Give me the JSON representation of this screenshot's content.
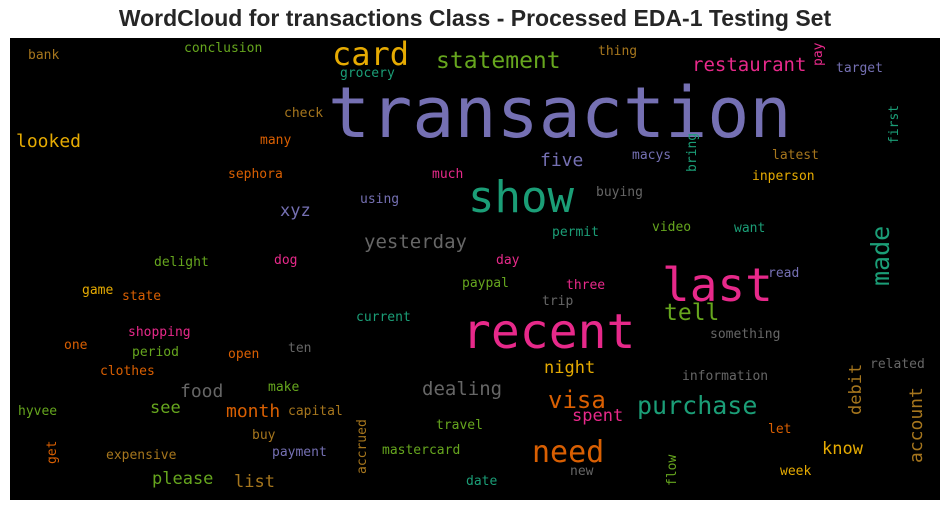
{
  "chart_data": {
    "type": "wordcloud",
    "title": "WordCloud for transactions Class - Processed EDA-1 Testing Set",
    "background": "#000000",
    "palette": [
      "#7570b3",
      "#1b9e77",
      "#e7298a",
      "#d95f02",
      "#e6ab02",
      "#66a61e",
      "#a6761d",
      "#666666"
    ],
    "words": [
      {
        "text": "transaction",
        "weight": 1.0,
        "color": "#7570b3"
      },
      {
        "text": "recent",
        "weight": 0.72,
        "color": "#e7298a"
      },
      {
        "text": "last",
        "weight": 0.68,
        "color": "#e7298a"
      },
      {
        "text": "show",
        "weight": 0.62,
        "color": "#1b9e77"
      },
      {
        "text": "card",
        "weight": 0.52,
        "color": "#e6ab02"
      },
      {
        "text": "need",
        "weight": 0.44,
        "color": "#d95f02"
      },
      {
        "text": "purchase",
        "weight": 0.38,
        "color": "#1b9e77"
      },
      {
        "text": "made",
        "weight": 0.38,
        "color": "#1b9e77",
        "vertical": true
      },
      {
        "text": "statement",
        "weight": 0.36,
        "color": "#66a61e"
      },
      {
        "text": "visa",
        "weight": 0.36,
        "color": "#d95f02"
      },
      {
        "text": "tell",
        "weight": 0.35,
        "color": "#66a61e"
      },
      {
        "text": "restaurant",
        "weight": 0.3,
        "color": "#e7298a"
      },
      {
        "text": "yesterday",
        "weight": 0.29,
        "color": "#666666"
      },
      {
        "text": "dealing",
        "weight": 0.29,
        "color": "#666666"
      },
      {
        "text": "five",
        "weight": 0.28,
        "color": "#7570b3"
      },
      {
        "text": "looked",
        "weight": 0.27,
        "color": "#e6ab02"
      },
      {
        "text": "food",
        "weight": 0.27,
        "color": "#666666"
      },
      {
        "text": "month",
        "weight": 0.27,
        "color": "#d95f02"
      },
      {
        "text": "account",
        "weight": 0.27,
        "color": "#a6761d",
        "vertical": true
      },
      {
        "text": "xyz",
        "weight": 0.26,
        "color": "#7570b3"
      },
      {
        "text": "debit",
        "weight": 0.26,
        "color": "#a6761d",
        "vertical": true
      },
      {
        "text": "spent",
        "weight": 0.26,
        "color": "#e7298a"
      },
      {
        "text": "please",
        "weight": 0.26,
        "color": "#66a61e"
      },
      {
        "text": "list",
        "weight": 0.26,
        "color": "#a6761d"
      },
      {
        "text": "know",
        "weight": 0.26,
        "color": "#e6ab02"
      },
      {
        "text": "night",
        "weight": 0.25,
        "color": "#e6ab02"
      },
      {
        "text": "see",
        "weight": 0.25,
        "color": "#66a61e"
      },
      {
        "text": "conclusion",
        "weight": 0.19,
        "color": "#66a61e"
      },
      {
        "text": "bank",
        "weight": 0.19,
        "color": "#a6761d"
      },
      {
        "text": "grocery",
        "weight": 0.19,
        "color": "#1b9e77"
      },
      {
        "text": "thing",
        "weight": 0.19,
        "color": "#a6761d"
      },
      {
        "text": "pay",
        "weight": 0.19,
        "color": "#e7298a",
        "vertical": true
      },
      {
        "text": "target",
        "weight": 0.19,
        "color": "#7570b3"
      },
      {
        "text": "check",
        "weight": 0.19,
        "color": "#a6761d"
      },
      {
        "text": "first",
        "weight": 0.19,
        "color": "#1b9e77",
        "vertical": true
      },
      {
        "text": "many",
        "weight": 0.19,
        "color": "#d95f02"
      },
      {
        "text": "macys",
        "weight": 0.19,
        "color": "#7570b3"
      },
      {
        "text": "bring",
        "weight": 0.19,
        "color": "#1b9e77",
        "vertical": true
      },
      {
        "text": "latest",
        "weight": 0.19,
        "color": "#a6761d"
      },
      {
        "text": "much",
        "weight": 0.19,
        "color": "#e7298a"
      },
      {
        "text": "sephora",
        "weight": 0.19,
        "color": "#d95f02"
      },
      {
        "text": "inperson",
        "weight": 0.19,
        "color": "#e6ab02"
      },
      {
        "text": "buying",
        "weight": 0.19,
        "color": "#666666"
      },
      {
        "text": "using",
        "weight": 0.19,
        "color": "#7570b3"
      },
      {
        "text": "permit",
        "weight": 0.19,
        "color": "#1b9e77"
      },
      {
        "text": "video",
        "weight": 0.19,
        "color": "#66a61e"
      },
      {
        "text": "want",
        "weight": 0.19,
        "color": "#1b9e77"
      },
      {
        "text": "delight",
        "weight": 0.19,
        "color": "#66a61e"
      },
      {
        "text": "dog",
        "weight": 0.19,
        "color": "#e7298a"
      },
      {
        "text": "day",
        "weight": 0.19,
        "color": "#e7298a"
      },
      {
        "text": "read",
        "weight": 0.19,
        "color": "#7570b3"
      },
      {
        "text": "game",
        "weight": 0.19,
        "color": "#e6ab02"
      },
      {
        "text": "state",
        "weight": 0.19,
        "color": "#d95f02"
      },
      {
        "text": "paypal",
        "weight": 0.19,
        "color": "#66a61e"
      },
      {
        "text": "three",
        "weight": 0.19,
        "color": "#e7298a"
      },
      {
        "text": "trip",
        "weight": 0.19,
        "color": "#666666"
      },
      {
        "text": "shopping",
        "weight": 0.19,
        "color": "#e7298a"
      },
      {
        "text": "current",
        "weight": 0.19,
        "color": "#1b9e77"
      },
      {
        "text": "something",
        "weight": 0.19,
        "color": "#666666"
      },
      {
        "text": "one",
        "weight": 0.19,
        "color": "#d95f02"
      },
      {
        "text": "period",
        "weight": 0.19,
        "color": "#66a61e"
      },
      {
        "text": "ten",
        "weight": 0.19,
        "color": "#666666"
      },
      {
        "text": "open",
        "weight": 0.19,
        "color": "#d95f02"
      },
      {
        "text": "related",
        "weight": 0.19,
        "color": "#666666"
      },
      {
        "text": "clothes",
        "weight": 0.19,
        "color": "#d95f02"
      },
      {
        "text": "information",
        "weight": 0.19,
        "color": "#666666"
      },
      {
        "text": "make",
        "weight": 0.19,
        "color": "#66a61e"
      },
      {
        "text": "hyvee",
        "weight": 0.19,
        "color": "#66a61e"
      },
      {
        "text": "capital",
        "weight": 0.19,
        "color": "#a6761d"
      },
      {
        "text": "accrued",
        "weight": 0.19,
        "color": "#a6761d",
        "vertical": true
      },
      {
        "text": "travel",
        "weight": 0.19,
        "color": "#66a61e"
      },
      {
        "text": "get",
        "weight": 0.19,
        "color": "#d95f02",
        "vertical": true
      },
      {
        "text": "buy",
        "weight": 0.19,
        "color": "#a6761d"
      },
      {
        "text": "let",
        "weight": 0.19,
        "color": "#d95f02"
      },
      {
        "text": "expensive",
        "weight": 0.19,
        "color": "#a6761d"
      },
      {
        "text": "payment",
        "weight": 0.19,
        "color": "#7570b3"
      },
      {
        "text": "mastercard",
        "weight": 0.19,
        "color": "#66a61e"
      },
      {
        "text": "new",
        "weight": 0.19,
        "color": "#666666"
      },
      {
        "text": "flow",
        "weight": 0.19,
        "color": "#66a61e",
        "vertical": true
      },
      {
        "text": "week",
        "weight": 0.19,
        "color": "#e6ab02"
      },
      {
        "text": "date",
        "weight": 0.19,
        "color": "#1b9e77"
      }
    ]
  }
}
